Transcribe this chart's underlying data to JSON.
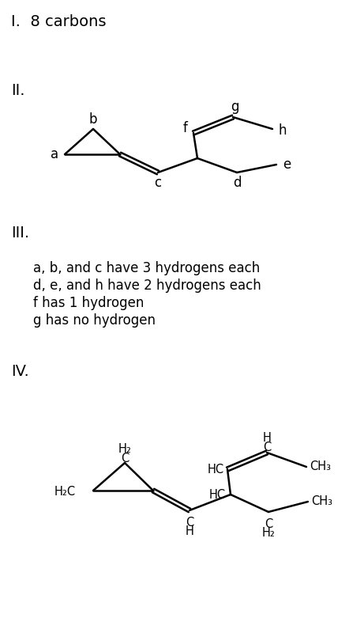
{
  "title_I": "I.  8 carbons",
  "title_II": "II.",
  "title_III": "III.",
  "title_IV": "IV.",
  "text_III": [
    "a, b, and c have 3 hydrogens each",
    "d, e, and h have 2 hydrogens each",
    "f has 1 hydrogen",
    "g has no hydrogen"
  ],
  "bg_color": "#ffffff",
  "font_size_roman": 14,
  "font_size_label": 12,
  "font_size_text": 12,
  "font_size_chem": 10.5
}
